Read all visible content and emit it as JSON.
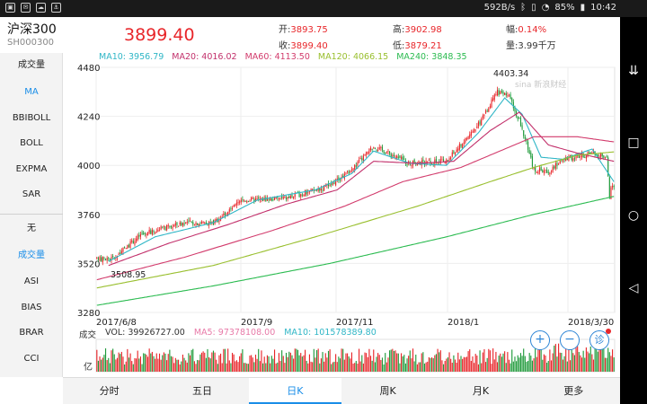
{
  "status_bar": {
    "net_speed": "592B/s",
    "battery": "85%",
    "time": "10:42"
  },
  "header": {
    "name": "沪深300",
    "code": "SH000300",
    "price": "3899.40",
    "open_label": "开:",
    "open": "3893.75",
    "close_label": "收:",
    "close": "3899.40",
    "high_label": "高:",
    "high": "3902.98",
    "low_label": "低:",
    "low": "3879.21",
    "amp_label": "幅:",
    "amp": "0.14%",
    "vol_label": "量:",
    "vol": "3.99千万"
  },
  "ma_legend": {
    "ma10": "MA10: 3956.79",
    "ma20": "MA20: 4016.02",
    "ma60": "MA60: 4113.50",
    "ma120": "MA120: 4066.15",
    "ma240": "MA240: 3848.35"
  },
  "volume_legend": {
    "label": "成交",
    "vol": "VOL: 39926727.00",
    "ma5": "MA5: 97378108.00",
    "ma10": "MA10: 101578389.80",
    "unit": "亿"
  },
  "left_menu": {
    "items_top": [
      "成交量",
      "MA",
      "BBIBOLL",
      "BOLL",
      "EXPMA",
      "SAR"
    ],
    "items_bottom": [
      "无",
      "成交量",
      "ASI",
      "BIAS",
      "BRAR",
      "CCI"
    ]
  },
  "tabs": [
    "分时",
    "五日",
    "日K",
    "周K",
    "月K",
    "更多"
  ],
  "watermark": "sina 新浪财经",
  "colors": {
    "up": "#e8262a",
    "down": "#1f9a3a",
    "ma10": "#2fb6c6",
    "ma20": "#c2306b",
    "ma60": "#d23b6c",
    "ma120": "#99bf2e",
    "ma240": "#2bbb50",
    "accent": "#1a8ee8"
  },
  "chart_data": {
    "type": "candlestick",
    "y_ticks": [
      "4480",
      "4240",
      "4000",
      "3760",
      "3520",
      "3280"
    ],
    "x_ticks": [
      "2017/6/8",
      "2017/9",
      "2017/11",
      "2018/1",
      "2018/3/30"
    ],
    "ylim": [
      3280,
      4480
    ],
    "max_label": "4403.34",
    "min_label": "3508.95",
    "anchors": [
      {
        "x": 0,
        "y": 3540
      },
      {
        "x": 12,
        "y": 3548
      },
      {
        "x": 30,
        "y": 3660
      },
      {
        "x": 60,
        "y": 3720
      },
      {
        "x": 80,
        "y": 3720
      },
      {
        "x": 100,
        "y": 3830
      },
      {
        "x": 130,
        "y": 3840
      },
      {
        "x": 160,
        "y": 3900
      },
      {
        "x": 175,
        "y": 3980
      },
      {
        "x": 190,
        "y": 4095
      },
      {
        "x": 215,
        "y": 4010
      },
      {
        "x": 240,
        "y": 4020
      },
      {
        "x": 262,
        "y": 4200
      },
      {
        "x": 275,
        "y": 4360
      },
      {
        "x": 284,
        "y": 4330
      },
      {
        "x": 292,
        "y": 4180
      },
      {
        "x": 300,
        "y": 3980
      },
      {
        "x": 310,
        "y": 3970
      },
      {
        "x": 320,
        "y": 4030
      },
      {
        "x": 340,
        "y": 4060
      },
      {
        "x": 350,
        "y": 4040
      },
      {
        "x": 352,
        "y": 3880
      },
      {
        "x": 355,
        "y": 3900
      }
    ],
    "ma_series": {
      "ma10": [
        {
          "x": 8,
          "y": 3530
        },
        {
          "x": 40,
          "y": 3650
        },
        {
          "x": 80,
          "y": 3720
        },
        {
          "x": 110,
          "y": 3830
        },
        {
          "x": 150,
          "y": 3880
        },
        {
          "x": 175,
          "y": 3960
        },
        {
          "x": 190,
          "y": 4070
        },
        {
          "x": 215,
          "y": 4010
        },
        {
          "x": 240,
          "y": 4000
        },
        {
          "x": 262,
          "y": 4160
        },
        {
          "x": 280,
          "y": 4330
        },
        {
          "x": 292,
          "y": 4250
        },
        {
          "x": 305,
          "y": 4040
        },
        {
          "x": 320,
          "y": 4030
        },
        {
          "x": 340,
          "y": 4080
        },
        {
          "x": 355,
          "y": 3920
        }
      ],
      "ma20": [
        {
          "x": 8,
          "y": 3510
        },
        {
          "x": 50,
          "y": 3620
        },
        {
          "x": 90,
          "y": 3710
        },
        {
          "x": 130,
          "y": 3810
        },
        {
          "x": 165,
          "y": 3880
        },
        {
          "x": 190,
          "y": 4020
        },
        {
          "x": 220,
          "y": 4010
        },
        {
          "x": 245,
          "y": 4020
        },
        {
          "x": 270,
          "y": 4170
        },
        {
          "x": 290,
          "y": 4260
        },
        {
          "x": 310,
          "y": 4100
        },
        {
          "x": 330,
          "y": 4060
        },
        {
          "x": 355,
          "y": 4020
        }
      ],
      "ma60": [
        {
          "x": 0,
          "y": 3440
        },
        {
          "x": 60,
          "y": 3550
        },
        {
          "x": 120,
          "y": 3680
        },
        {
          "x": 170,
          "y": 3800
        },
        {
          "x": 210,
          "y": 3920
        },
        {
          "x": 250,
          "y": 3990
        },
        {
          "x": 280,
          "y": 4080
        },
        {
          "x": 300,
          "y": 4140
        },
        {
          "x": 330,
          "y": 4140
        },
        {
          "x": 355,
          "y": 4115
        }
      ],
      "ma120": [
        {
          "x": 0,
          "y": 3400
        },
        {
          "x": 80,
          "y": 3510
        },
        {
          "x": 150,
          "y": 3650
        },
        {
          "x": 220,
          "y": 3800
        },
        {
          "x": 270,
          "y": 3920
        },
        {
          "x": 300,
          "y": 3990
        },
        {
          "x": 330,
          "y": 4050
        },
        {
          "x": 355,
          "y": 4066
        }
      ],
      "ma240": [
        {
          "x": 0,
          "y": 3315
        },
        {
          "x": 80,
          "y": 3410
        },
        {
          "x": 160,
          "y": 3520
        },
        {
          "x": 240,
          "y": 3650
        },
        {
          "x": 300,
          "y": 3760
        },
        {
          "x": 355,
          "y": 3848
        }
      ]
    }
  }
}
